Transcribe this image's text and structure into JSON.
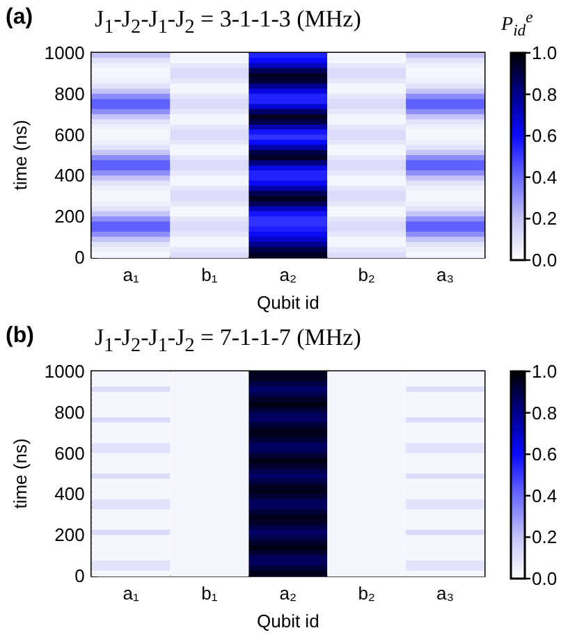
{
  "chart_data": [
    {
      "type": "heatmap",
      "title": "J$_{1}$-J$_{2}$-J$_{1}$-J$_{2}$ = 3-1-1-3 (MHz)",
      "annotations": [
        "(a)"
      ],
      "xlabel": "Qubit id",
      "ylabel": "time (ns)",
      "clabel": "P$_{id}$$^{e}$",
      "categories": [
        "a₁",
        "b₁",
        "a₂",
        "b₂",
        "a₃"
      ],
      "ylim": [
        0,
        1000
      ],
      "yticks": [
        0,
        200,
        400,
        600,
        800,
        1000
      ],
      "clim": [
        0,
        1
      ],
      "cticks": [
        {
          "value": 0,
          "label": "0.0"
        },
        {
          "value": 0.2,
          "label": "0.2"
        },
        {
          "value": 0.4,
          "label": "0.4"
        },
        {
          "value": 0.6,
          "label": "0.6"
        },
        {
          "value": 0.8,
          "label": "0.8"
        },
        {
          "value": 1,
          "label": "1.0"
        }
      ],
      "cells": [
        [
          0.2,
          0.03,
          0.55,
          0.03,
          0.2
        ],
        [
          0.1,
          0.03,
          0.6,
          0.03,
          0.1
        ],
        [
          0.05,
          0.08,
          0.72,
          0.08,
          0.05
        ],
        [
          0.03,
          0.12,
          0.88,
          0.12,
          0.03
        ],
        [
          0.03,
          0.12,
          0.95,
          0.12,
          0.03
        ],
        [
          0.05,
          0.08,
          0.92,
          0.08,
          0.05
        ],
        [
          0.1,
          0.03,
          0.8,
          0.03,
          0.1
        ],
        [
          0.2,
          0.03,
          0.65,
          0.03,
          0.2
        ],
        [
          0.32,
          0.08,
          0.55,
          0.08,
          0.32
        ],
        [
          0.42,
          0.12,
          0.55,
          0.12,
          0.42
        ],
        [
          0.42,
          0.12,
          0.68,
          0.12,
          0.42
        ],
        [
          0.32,
          0.08,
          0.85,
          0.08,
          0.32
        ],
        [
          0.2,
          0.03,
          0.95,
          0.03,
          0.2
        ],
        [
          0.1,
          0.03,
          0.9,
          0.03,
          0.1
        ],
        [
          0.05,
          0.08,
          0.75,
          0.08,
          0.05
        ],
        [
          0.03,
          0.12,
          0.58,
          0.12,
          0.03
        ],
        [
          0.03,
          0.12,
          0.52,
          0.12,
          0.03
        ],
        [
          0.05,
          0.08,
          0.6,
          0.08,
          0.05
        ],
        [
          0.1,
          0.03,
          0.75,
          0.03,
          0.1
        ],
        [
          0.2,
          0.03,
          0.9,
          0.03,
          0.2
        ],
        [
          0.32,
          0.08,
          0.95,
          0.08,
          0.32
        ],
        [
          0.42,
          0.12,
          0.82,
          0.12,
          0.42
        ],
        [
          0.42,
          0.12,
          0.65,
          0.12,
          0.42
        ],
        [
          0.32,
          0.08,
          0.55,
          0.08,
          0.32
        ],
        [
          0.2,
          0.03,
          0.55,
          0.03,
          0.2
        ],
        [
          0.1,
          0.03,
          0.62,
          0.03,
          0.1
        ],
        [
          0.05,
          0.08,
          0.75,
          0.08,
          0.05
        ],
        [
          0.03,
          0.12,
          0.88,
          0.12,
          0.03
        ],
        [
          0.03,
          0.12,
          0.95,
          0.12,
          0.03
        ],
        [
          0.05,
          0.08,
          0.88,
          0.08,
          0.05
        ],
        [
          0.1,
          0.03,
          0.72,
          0.03,
          0.1
        ],
        [
          0.2,
          0.03,
          0.58,
          0.03,
          0.2
        ],
        [
          0.32,
          0.08,
          0.52,
          0.08,
          0.32
        ],
        [
          0.42,
          0.12,
          0.52,
          0.12,
          0.42
        ],
        [
          0.42,
          0.12,
          0.56,
          0.12,
          0.42
        ],
        [
          0.32,
          0.08,
          0.62,
          0.08,
          0.32
        ],
        [
          0.2,
          0.03,
          0.7,
          0.03,
          0.2
        ],
        [
          0.1,
          0.03,
          0.8,
          0.03,
          0.1
        ],
        [
          0.05,
          0.08,
          0.9,
          0.08,
          0.05
        ],
        [
          0.03,
          0.12,
          0.95,
          0.12,
          0.03
        ]
      ]
    },
    {
      "type": "heatmap",
      "title": "J$_{1}$-J$_{2}$-J$_{1}$-J$_{2}$ = 7-1-1-7 (MHz)",
      "annotations": [
        "(b)"
      ],
      "xlabel": "Qubit id",
      "ylabel": "time (ns)",
      "categories": [
        "a₁",
        "b₁",
        "a₂",
        "b₂",
        "a₃"
      ],
      "ylim": [
        0,
        1000
      ],
      "yticks": [
        0,
        200,
        400,
        600,
        800,
        1000
      ],
      "clim": [
        0,
        1
      ],
      "cticks": [
        {
          "value": 0,
          "label": "0.0"
        },
        {
          "value": 0.2,
          "label": "0.2"
        },
        {
          "value": 0.4,
          "label": "0.4"
        },
        {
          "value": 0.6,
          "label": "0.6"
        },
        {
          "value": 0.8,
          "label": "0.8"
        },
        {
          "value": 1,
          "label": "1.0"
        }
      ],
      "cells": [
        [
          0.03,
          0.03,
          0.96,
          0.03,
          0.03
        ],
        [
          0.03,
          0.03,
          0.95,
          0.03,
          0.03
        ],
        [
          0.03,
          0.03,
          0.9,
          0.03,
          0.03
        ],
        [
          0.12,
          0.03,
          0.85,
          0.03,
          0.12
        ],
        [
          0.03,
          0.03,
          0.89,
          0.03,
          0.03
        ],
        [
          0.03,
          0.03,
          0.94,
          0.03,
          0.03
        ],
        [
          0.03,
          0.03,
          0.97,
          0.03,
          0.03
        ],
        [
          0.03,
          0.03,
          0.93,
          0.03,
          0.03
        ],
        [
          0.03,
          0.03,
          0.87,
          0.03,
          0.03
        ],
        [
          0.12,
          0.03,
          0.86,
          0.03,
          0.12
        ],
        [
          0.03,
          0.03,
          0.92,
          0.03,
          0.03
        ],
        [
          0.03,
          0.03,
          0.96,
          0.03,
          0.03
        ],
        [
          0.03,
          0.03,
          0.96,
          0.03,
          0.03
        ],
        [
          0.03,
          0.03,
          0.91,
          0.03,
          0.03
        ],
        [
          0.1,
          0.03,
          0.86,
          0.03,
          0.1
        ],
        [
          0.1,
          0.03,
          0.87,
          0.03,
          0.1
        ],
        [
          0.03,
          0.03,
          0.93,
          0.03,
          0.03
        ],
        [
          0.03,
          0.03,
          0.97,
          0.03,
          0.03
        ],
        [
          0.03,
          0.03,
          0.94,
          0.03,
          0.03
        ],
        [
          0.03,
          0.03,
          0.89,
          0.03,
          0.03
        ],
        [
          0.12,
          0.03,
          0.85,
          0.03,
          0.12
        ],
        [
          0.03,
          0.03,
          0.9,
          0.03,
          0.03
        ],
        [
          0.03,
          0.03,
          0.95,
          0.03,
          0.03
        ],
        [
          0.03,
          0.03,
          0.96,
          0.03,
          0.03
        ],
        [
          0.03,
          0.03,
          0.92,
          0.03,
          0.03
        ],
        [
          0.1,
          0.03,
          0.87,
          0.03,
          0.1
        ],
        [
          0.1,
          0.03,
          0.87,
          0.03,
          0.1
        ],
        [
          0.03,
          0.03,
          0.92,
          0.03,
          0.03
        ],
        [
          0.03,
          0.03,
          0.96,
          0.03,
          0.03
        ],
        [
          0.03,
          0.03,
          0.95,
          0.03,
          0.03
        ],
        [
          0.03,
          0.03,
          0.9,
          0.03,
          0.03
        ],
        [
          0.12,
          0.03,
          0.85,
          0.03,
          0.12
        ],
        [
          0.03,
          0.03,
          0.89,
          0.03,
          0.03
        ],
        [
          0.03,
          0.03,
          0.94,
          0.03,
          0.03
        ],
        [
          0.03,
          0.03,
          0.97,
          0.03,
          0.03
        ],
        [
          0.03,
          0.03,
          0.93,
          0.03,
          0.03
        ],
        [
          0.03,
          0.03,
          0.87,
          0.03,
          0.03
        ],
        [
          0.1,
          0.03,
          0.87,
          0.03,
          0.1
        ],
        [
          0.1,
          0.03,
          0.92,
          0.03,
          0.1
        ],
        [
          0.03,
          0.03,
          0.96,
          0.03,
          0.03
        ]
      ]
    }
  ]
}
